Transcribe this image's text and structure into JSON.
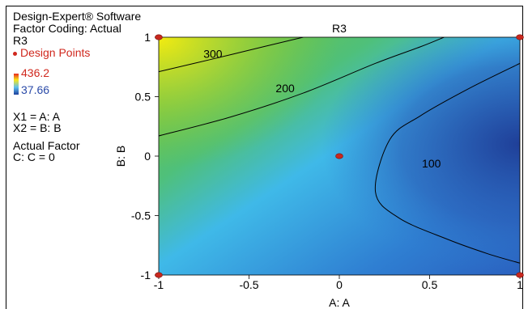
{
  "header": {
    "software": "Design-Expert® Software",
    "coding": "Factor Coding: Actual",
    "response": "R3"
  },
  "legend": {
    "design_points_label": "Design Points",
    "scale_high": "436.2",
    "scale_low": "37.66",
    "x1_def": "X1 = A: A",
    "x2_def": "X2 = B: B",
    "actual_factor_title": "Actual Factor",
    "actual_factor_value": "C: C = 0"
  },
  "colors": {
    "design_point": "#c8281e",
    "scale_high": "#d0281e",
    "scale_low": "#2a4aa8"
  },
  "chart_data": {
    "type": "heatmap",
    "title": "R3",
    "xlabel": "A: A",
    "ylabel": "B: B",
    "xlim": [
      -1,
      1
    ],
    "ylim": [
      -1,
      1
    ],
    "x_ticks": [
      "-1",
      "-0.5",
      "0",
      "0.5",
      "1"
    ],
    "y_ticks": [
      "-1",
      "-0.5",
      "0",
      "0.5",
      "1"
    ],
    "color_range": [
      37.66,
      436.2
    ],
    "contours": [
      {
        "label": "300",
        "points": [
          [
            -1,
            0.71
          ],
          [
            -0.72,
            0.81
          ],
          [
            -0.42,
            0.92
          ],
          [
            -0.2,
            1.0
          ]
        ],
        "label_at": [
          -0.7,
          0.86
        ]
      },
      {
        "label": "200",
        "points": [
          [
            -1,
            0.17
          ],
          [
            -0.6,
            0.33
          ],
          [
            -0.2,
            0.53
          ],
          [
            0.2,
            0.78
          ],
          [
            0.45,
            0.92
          ],
          [
            0.58,
            1.0
          ]
        ],
        "label_at": [
          -0.3,
          0.57
        ]
      },
      {
        "label": "100",
        "points": [
          [
            1,
            0.78
          ],
          [
            0.72,
            0.57
          ],
          [
            0.45,
            0.34
          ],
          [
            0.28,
            0.14
          ],
          [
            0.2,
            -0.3
          ],
          [
            0.33,
            -0.52
          ],
          [
            0.6,
            -0.7
          ],
          [
            0.82,
            -0.82
          ],
          [
            1,
            -0.9
          ]
        ],
        "label_at": [
          0.51,
          -0.06
        ]
      }
    ],
    "design_points": [
      {
        "x": -1,
        "y": 1
      },
      {
        "x": 1,
        "y": 1
      },
      {
        "x": 0,
        "y": 0
      },
      {
        "x": -1,
        "y": -1
      },
      {
        "x": 1,
        "y": -1
      }
    ]
  }
}
